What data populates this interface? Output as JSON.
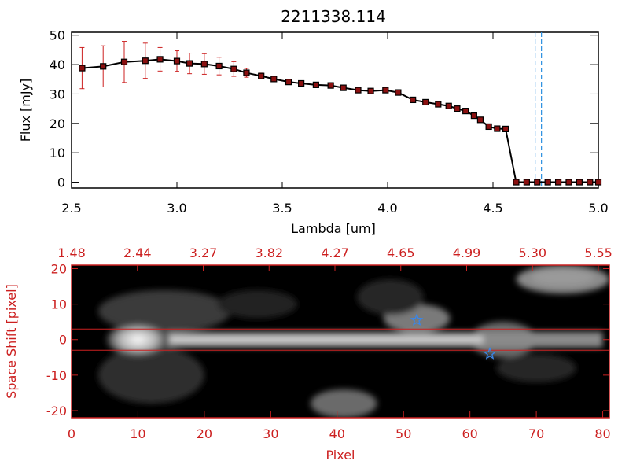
{
  "chart_data": [
    {
      "type": "line",
      "title": "2211338.114",
      "xlabel": "Lambda [um]",
      "ylabel": "Flux [mJy]",
      "xlim": [
        2.5,
        5.0
      ],
      "ylim": [
        -2,
        51
      ],
      "x_ticks": [
        "2.5",
        "3.0",
        "3.5",
        "4.0",
        "4.5",
        "5.0"
      ],
      "y_ticks": [
        "0",
        "10",
        "20",
        "30",
        "40",
        "50"
      ],
      "line_color": "#000000",
      "marker_color": "#8b1010",
      "error_color": "#cc2020",
      "vline_color": "#2a8fe0",
      "vlines": [
        4.7,
        4.73
      ],
      "series": [
        {
          "x": [
            2.55,
            2.65,
            2.75,
            2.85,
            2.92,
            3.0,
            3.06,
            3.13,
            3.2,
            3.27,
            3.33,
            3.4,
            3.46,
            3.53,
            3.59,
            3.66,
            3.73,
            3.79,
            3.86,
            3.92,
            3.99,
            4.05,
            4.12,
            4.18,
            4.24,
            4.29,
            4.33,
            4.37,
            4.41,
            4.44,
            4.48,
            4.52,
            4.56,
            4.61,
            4.66,
            4.71,
            4.76,
            4.81,
            4.86,
            4.91,
            4.96,
            5.0
          ],
          "y": [
            38.8,
            39.4,
            40.9,
            41.3,
            41.8,
            41.2,
            40.4,
            40.2,
            39.5,
            38.5,
            37.2,
            36.1,
            35.1,
            34.1,
            33.6,
            33.1,
            32.9,
            32.1,
            31.3,
            31.0,
            31.3,
            30.5,
            28.0,
            27.2,
            26.5,
            25.9,
            25.0,
            24.2,
            22.6,
            21.2,
            18.9,
            18.2,
            18.1,
            0.0,
            0.0,
            0.0,
            0.0,
            0.0,
            0.0,
            0.0,
            0.0,
            0.0
          ],
          "err": [
            7,
            7,
            7,
            6,
            4,
            3.5,
            3.5,
            3.5,
            3,
            2.5,
            1.5,
            1,
            0.5,
            0.5,
            0.5,
            0.5,
            0.5,
            0.5,
            0.5,
            0.5,
            0.5,
            0.5,
            0.5,
            0.5,
            0.5,
            0.5,
            0.5,
            0.5,
            0.5,
            0.5,
            0.5,
            0.5,
            0.5,
            0.5,
            0.5,
            0.5,
            0.5,
            0.5,
            0.5,
            0.5,
            0.5,
            0.5
          ]
        }
      ]
    },
    {
      "type": "heatmap",
      "xlabel": "Pixel",
      "ylabel": "Space Shift [pixel]",
      "xlim": [
        0,
        81
      ],
      "ylim": [
        -22,
        21
      ],
      "x_ticks": [
        "0",
        "10",
        "20",
        "30",
        "40",
        "50",
        "60",
        "70",
        "80"
      ],
      "y_ticks": [
        "-20",
        "-10",
        "0",
        "10",
        "20"
      ],
      "top_ticks": [
        "1.48",
        "2.44",
        "3.27",
        "3.82",
        "4.27",
        "4.65",
        "4.99",
        "5.30",
        "5.55"
      ],
      "axis_color": "#cc2020",
      "background": "#000000",
      "guide_lines_y": [
        3,
        -3
      ],
      "stars": [
        {
          "x": 52,
          "y": 5.5,
          "color": "#3a86e8"
        },
        {
          "x": 63,
          "y": -4,
          "color": "#3a86e8"
        }
      ]
    }
  ]
}
